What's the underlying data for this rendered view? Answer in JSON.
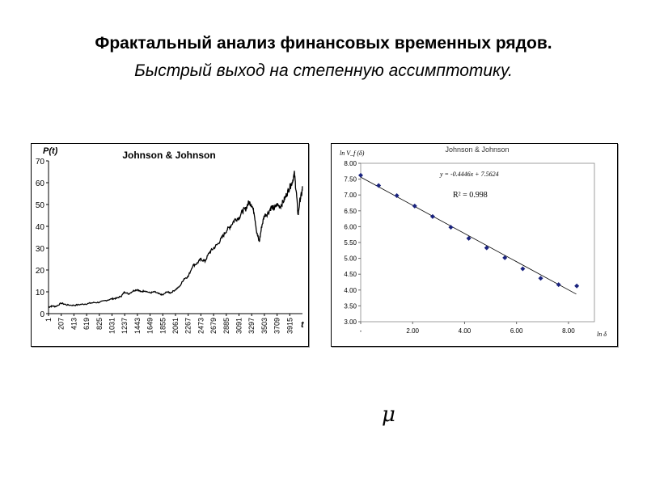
{
  "slide": {
    "title": "Фрактальный анализ финансовых временных рядов.",
    "subtitle": "Быстрый выход на степенную ассимптотику.",
    "symbol": "μ"
  },
  "chart_data": [
    {
      "type": "line",
      "title": "Johnson & Johnson",
      "ylabel": "P(t)",
      "xlabel": "t",
      "ylim": [
        0,
        70
      ],
      "yticks": [
        0,
        10,
        20,
        30,
        40,
        50,
        60,
        70
      ],
      "xlim": [
        1,
        4121
      ],
      "xticks": [
        "1",
        "207",
        "413",
        "619",
        "825",
        "1031",
        "1237",
        "1443",
        "1649",
        "1855",
        "2061",
        "2267",
        "2473",
        "2679",
        "2885",
        "3091",
        "3297",
        "3503",
        "3709",
        "3915"
      ],
      "color": "#000000",
      "series": [
        {
          "x": [
            1,
            60,
            120,
            207,
            300,
            413,
            519,
            619,
            720,
            825,
            930,
            1031,
            1100,
            1180,
            1237,
            1300,
            1380,
            1443,
            1500,
            1560,
            1649,
            1720,
            1780,
            1855,
            1920,
            1980,
            2061,
            2130,
            2200,
            2267,
            2340,
            2410,
            2473,
            2540,
            2610,
            2679,
            2750,
            2820,
            2885,
            2950,
            3020,
            3091,
            3150,
            3200,
            3250,
            3297,
            3340,
            3380,
            3420,
            3460,
            3503,
            3560,
            3620,
            3660,
            3709,
            3760,
            3820,
            3870,
            3915,
            3950,
            3990,
            4020,
            4050,
            4080,
            4110,
            4121
          ],
          "y": [
            3,
            3.5,
            3.3,
            4.8,
            4,
            3.8,
            4.2,
            4.5,
            5,
            5.2,
            6,
            6.8,
            7,
            8,
            10,
            9,
            10.5,
            11,
            10,
            10.5,
            9.5,
            10,
            9.2,
            8.5,
            10,
            9.5,
            11,
            12.5,
            16,
            17,
            22,
            23,
            25,
            24,
            28,
            30,
            32,
            35,
            38,
            40,
            43,
            44,
            47,
            48,
            51,
            50,
            46,
            37,
            33,
            40,
            45,
            46,
            49,
            48,
            50,
            49,
            52,
            55,
            58,
            60,
            64,
            56,
            45,
            52,
            55,
            58
          ]
        }
      ]
    },
    {
      "type": "scatter",
      "title": "Johnson & Johnson",
      "ylabel": "ln V_f (δ)",
      "xlabel": "ln δ",
      "xlim": [
        0,
        9
      ],
      "ylim": [
        3,
        8
      ],
      "xticks": [
        "-",
        "2.00",
        "4.00",
        "6.00",
        "8.00"
      ],
      "yticks": [
        "3.00",
        "3.50",
        "4.00",
        "4.50",
        "5.00",
        "5.50",
        "6.00",
        "6.50",
        "7.00",
        "7.50",
        "8.00"
      ],
      "equation": "y = -0.4446x + 7.5624",
      "r_squared": "R² = 0.998",
      "trendline": {
        "slope": -0.4446,
        "intercept": 7.5624,
        "x_range": [
          0,
          8.3
        ]
      },
      "marker_color": "#1a237e",
      "points": {
        "x": [
          0.0,
          0.69,
          1.39,
          2.08,
          2.77,
          3.47,
          4.16,
          4.85,
          5.55,
          6.24,
          6.93,
          7.62,
          8.32
        ],
        "y": [
          7.62,
          7.3,
          6.98,
          6.65,
          6.32,
          5.98,
          5.63,
          5.33,
          5.02,
          4.67,
          4.37,
          4.17,
          4.13
        ]
      }
    }
  ]
}
